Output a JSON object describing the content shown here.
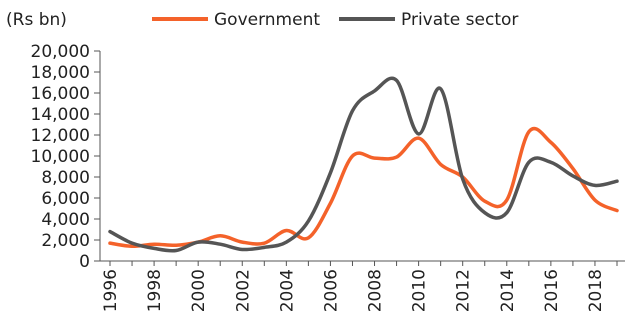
{
  "chart_data": {
    "type": "line",
    "unit_label": "(Rs bn)",
    "x": [
      1996,
      1997,
      1998,
      1999,
      2000,
      2001,
      2002,
      2003,
      2004,
      2005,
      2006,
      2007,
      2008,
      2009,
      2010,
      2011,
      2012,
      2013,
      2014,
      2015,
      2016,
      2017,
      2018,
      2019
    ],
    "x_tick_labels": [
      "1996",
      "1998",
      "2000",
      "2002",
      "2004",
      "2006",
      "2008",
      "2010",
      "2012",
      "2014",
      "2016",
      "2018"
    ],
    "y_tick_labels": [
      "0",
      "2,000",
      "4,000",
      "6,000",
      "8,000",
      "10,000",
      "12,000",
      "14,000",
      "16,000",
      "18,000",
      "20,000"
    ],
    "ylim": [
      0,
      20000
    ],
    "legend_position": "top",
    "series": [
      {
        "name": "Government",
        "color": "#F4622A",
        "values": [
          1700,
          1400,
          1600,
          1500,
          1800,
          2400,
          1800,
          1700,
          2900,
          2200,
          5500,
          10000,
          9800,
          9900,
          11700,
          9200,
          8000,
          5700,
          5800,
          12300,
          11300,
          8800,
          5800,
          4800
        ]
      },
      {
        "name": "Private sector",
        "color": "#555555",
        "values": [
          2800,
          1700,
          1200,
          1000,
          1800,
          1600,
          1100,
          1300,
          1800,
          3800,
          8400,
          14300,
          16200,
          17200,
          12100,
          16400,
          7800,
          4600,
          4600,
          9400,
          9400,
          8100,
          7200,
          7600
        ]
      }
    ]
  }
}
